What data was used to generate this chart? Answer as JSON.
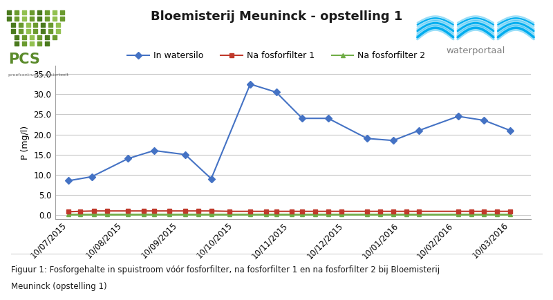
{
  "title": "Bloemisterij Meuninck - opstelling 1",
  "ylabel": "P (mg/l)",
  "ylim": [
    -1,
    37
  ],
  "yticks": [
    0.0,
    5.0,
    10.0,
    15.0,
    20.0,
    25.0,
    30.0,
    35.0
  ],
  "x_labels": [
    "10/07/2015",
    "10/08/2015",
    "10/09/2015",
    "10/10/2015",
    "10/11/2015",
    "10/12/2015",
    "10/01/2016",
    "10/02/2016",
    "10/03/2016"
  ],
  "watersilo_x": [
    0,
    0.9,
    2.3,
    3.3,
    4.5,
    5.5,
    7.0,
    8.0,
    9.0,
    10.0,
    11.5,
    12.5,
    13.5,
    15.0,
    16.0,
    17.0
  ],
  "watersilo_y": [
    8.5,
    9.5,
    14.0,
    16.0,
    15.0,
    9.0,
    32.5,
    30.5,
    24.0,
    24.0,
    19.0,
    18.5,
    21.0,
    24.5,
    23.5,
    21.0
  ],
  "filter1_x": [
    0,
    0.45,
    1.0,
    1.5,
    2.3,
    2.9,
    3.3,
    3.9,
    4.5,
    5.0,
    5.5,
    6.2,
    7.0,
    7.6,
    8.0,
    8.6,
    9.0,
    9.5,
    10.0,
    10.5,
    11.5,
    12.0,
    12.5,
    13.0,
    13.5,
    15.0,
    15.5,
    16.0,
    16.5,
    17.0
  ],
  "filter1_y": [
    0.8,
    0.9,
    1.0,
    1.0,
    1.0,
    1.0,
    1.0,
    1.0,
    1.0,
    1.0,
    1.0,
    0.9,
    0.9,
    0.9,
    0.9,
    0.9,
    0.9,
    0.9,
    0.9,
    0.9,
    0.9,
    0.9,
    0.9,
    0.9,
    0.9,
    0.9,
    0.9,
    0.9,
    0.9,
    0.9
  ],
  "filter2_x": [
    0,
    0.45,
    1.0,
    1.5,
    2.3,
    2.9,
    3.3,
    3.9,
    4.5,
    5.0,
    5.5,
    6.2,
    7.0,
    7.6,
    8.0,
    8.6,
    9.0,
    9.5,
    10.0,
    10.5,
    11.5,
    12.0,
    12.5,
    13.0,
    13.5,
    15.0,
    15.5,
    16.0,
    16.5,
    17.0
  ],
  "filter2_y": [
    0.1,
    0.1,
    0.1,
    0.1,
    0.1,
    0.1,
    0.1,
    0.1,
    0.1,
    0.1,
    0.1,
    0.1,
    0.1,
    0.1,
    0.1,
    0.1,
    0.1,
    0.1,
    0.1,
    0.1,
    0.1,
    0.1,
    0.1,
    0.1,
    0.1,
    0.1,
    0.1,
    0.1,
    0.1,
    0.1
  ],
  "color_watersilo": "#4472C4",
  "color_filter1": "#C0392B",
  "color_filter2": "#70AD47",
  "caption_line1": "Figuur 1: Fosforgehalte in spuistroom vóór fosforfilter, na fosforfilter 1 en na fosforfilter 2 bij Bloemisterij",
  "caption_line2": "Meuninck (opstelling 1)",
  "background_color": "#FFFFFF",
  "grid_color": "#C8C8C8",
  "title_fontsize": 13,
  "axis_fontsize": 9,
  "tick_fontsize": 8.5,
  "legend_fontsize": 9,
  "caption_fontsize": 8.5,
  "pcs_green": "#5A8A2A",
  "wp_blue": "#00ADEF",
  "wp_text_color": "#808080"
}
